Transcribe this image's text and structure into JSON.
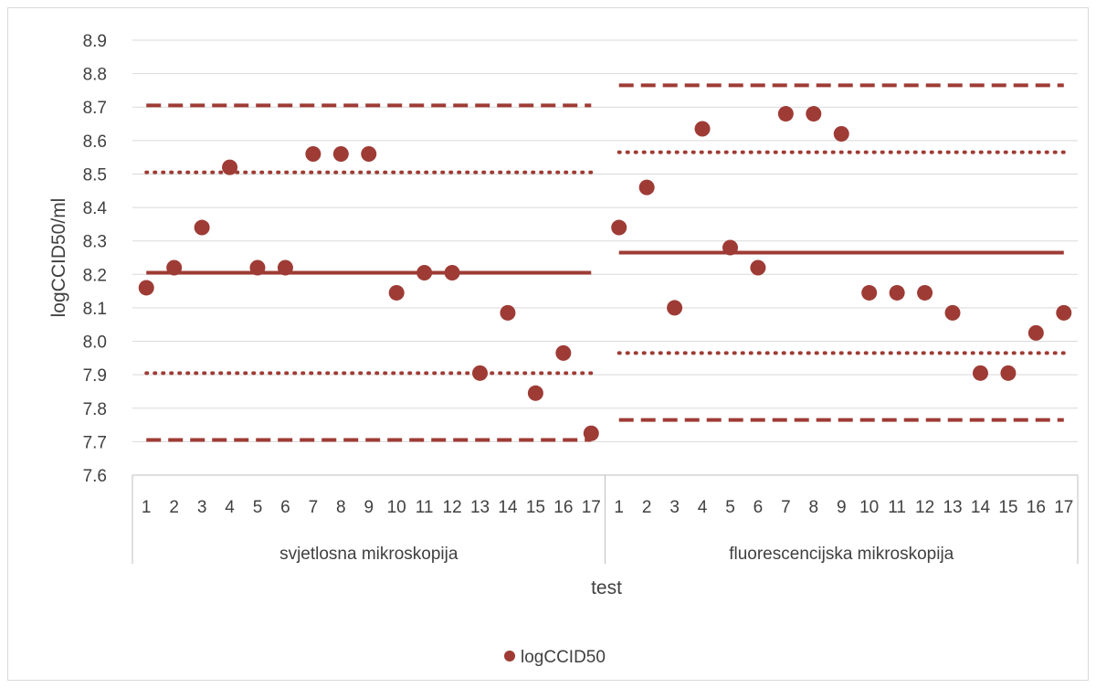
{
  "chart_data": {
    "type": "scatter",
    "xlabel": "test",
    "ylabel": "logCCID50/ml",
    "ylim": [
      7.6,
      8.9
    ],
    "yticks": [
      "7.6",
      "7.7",
      "7.8",
      "7.9",
      "8.0",
      "8.1",
      "8.2",
      "8.3",
      "8.4",
      "8.5",
      "8.6",
      "8.7",
      "8.8",
      "8.9"
    ],
    "grid": true,
    "legend_position": "bottom",
    "marker_color": "#9e3b35",
    "line_color": "#9e3b35",
    "groups": [
      {
        "label": "svjetlosna mikroskopija",
        "categories": [
          "1",
          "2",
          "3",
          "4",
          "5",
          "6",
          "7",
          "8",
          "9",
          "10",
          "11",
          "12",
          "13",
          "14",
          "15",
          "16",
          "17"
        ],
        "values": [
          8.16,
          8.22,
          8.34,
          8.52,
          8.22,
          8.22,
          8.56,
          8.56,
          8.56,
          8.145,
          8.205,
          8.205,
          7.905,
          8.085,
          7.845,
          7.965,
          7.725
        ],
        "reference_lines": {
          "mean": 8.205,
          "inner_upper": 8.505,
          "inner_lower": 7.905,
          "outer_upper": 8.705,
          "outer_lower": 7.705
        }
      },
      {
        "label": "fluorescencijska mikroskopija",
        "categories": [
          "1",
          "2",
          "3",
          "4",
          "5",
          "6",
          "7",
          "8",
          "9",
          "10",
          "11",
          "12",
          "13",
          "14",
          "15",
          "16",
          "17"
        ],
        "values": [
          8.34,
          8.46,
          8.1,
          8.635,
          8.28,
          8.22,
          8.68,
          8.68,
          8.62,
          8.145,
          8.145,
          8.145,
          8.085,
          7.905,
          7.905,
          8.025,
          8.085
        ],
        "reference_lines": {
          "mean": 8.265,
          "inner_upper": 8.565,
          "inner_lower": 7.965,
          "outer_upper": 8.765,
          "outer_lower": 7.765
        }
      }
    ],
    "series": [
      {
        "name": "logCCID50"
      }
    ]
  }
}
